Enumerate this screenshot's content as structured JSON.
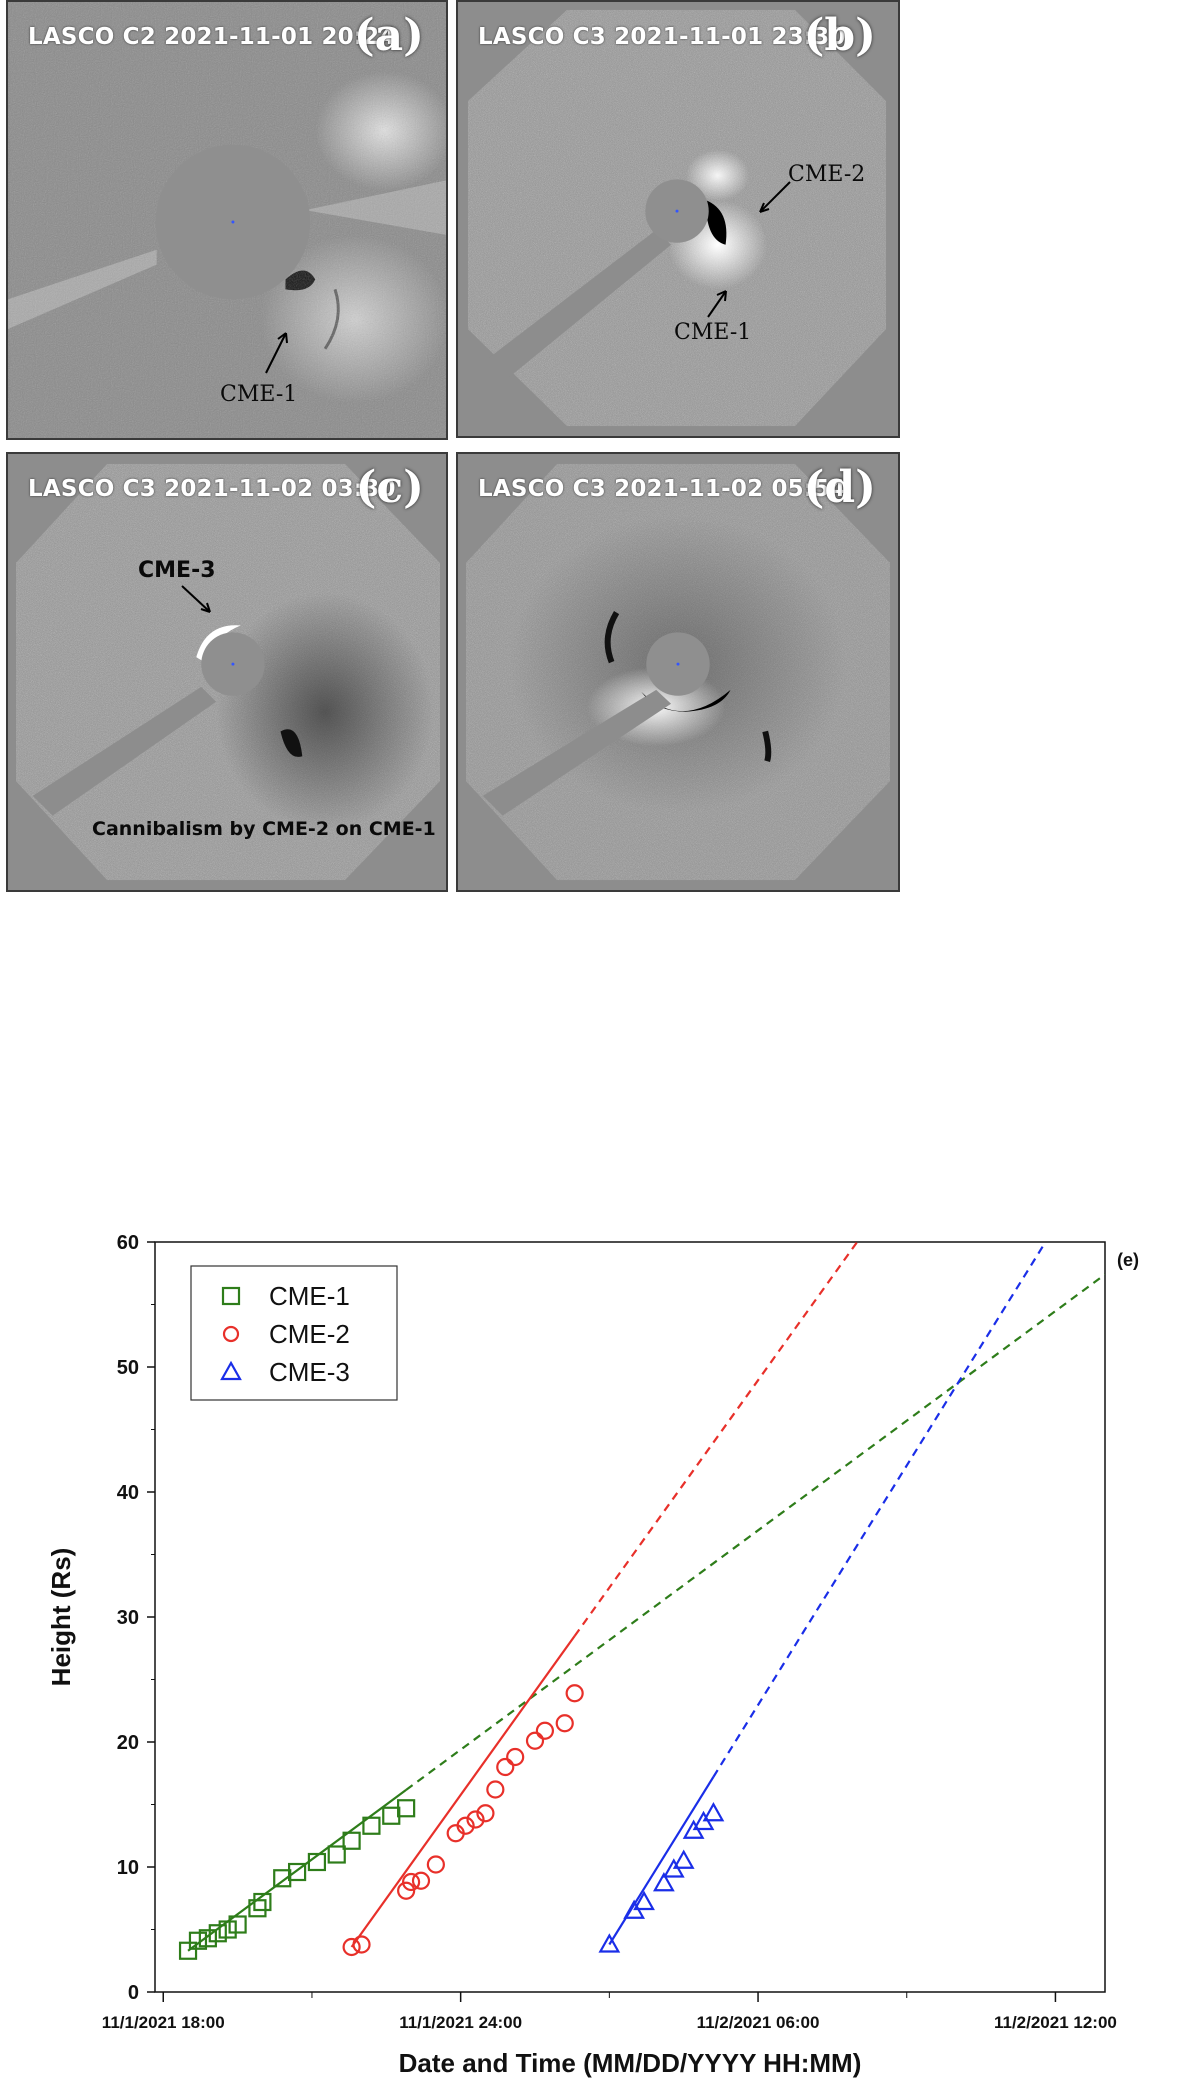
{
  "panels": [
    {
      "id": "a",
      "title": "LASCO C2 2021-11-01 20:24",
      "label": "(a)",
      "annotations": [
        "CME-1"
      ]
    },
    {
      "id": "b",
      "title": "LASCO C3 2021-11-01 23:30",
      "label": "(b)",
      "annotations": [
        "CME-2",
        "CME-1"
      ]
    },
    {
      "id": "c",
      "title": "LASCO C3 2021-11-02 03:30",
      "label": "(c)",
      "annotations": [
        "CME-3",
        "Cannibalism by CME-2 on CME-1"
      ]
    },
    {
      "id": "d",
      "title": "LASCO C3 2021-11-02 05:54",
      "label": "(d)",
      "annotations": []
    }
  ],
  "chart_data": {
    "type": "scatter",
    "panel_label": "(e)",
    "xlabel": "Date and Time (MM/DD/YYYY HH:MM)",
    "ylabel": "Height (Rs)",
    "xlim": [
      "11/1/2021 17:50",
      "11/2/2021 13:00"
    ],
    "ylim": [
      0,
      60
    ],
    "x_tick_labels": [
      "11/1/2021 18:00",
      "11/1/2021 24:00",
      "11/2/2021 06:00",
      "11/2/2021 12:00"
    ],
    "y_ticks": [
      0,
      10,
      20,
      30,
      40,
      50,
      60
    ],
    "grid": false,
    "legend_position": "top-left",
    "series": [
      {
        "name": "CME-1",
        "marker": "square",
        "color": "#2e7d1a",
        "x": [
          "11/1/2021 18:30",
          "11/1/2021 18:42",
          "11/1/2021 18:54",
          "11/1/2021 19:06",
          "11/1/2021 19:18",
          "11/1/2021 19:30",
          "11/1/2021 19:54",
          "11/1/2021 20:00",
          "11/1/2021 20:24",
          "11/1/2021 20:42",
          "11/1/2021 21:06",
          "11/1/2021 21:30",
          "11/1/2021 21:48",
          "11/1/2021 22:12",
          "11/1/2021 22:36",
          "11/1/2021 22:54"
        ],
        "y": [
          3.3,
          4.1,
          4.3,
          4.7,
          5.0,
          5.4,
          6.7,
          7.2,
          9.1,
          9.6,
          10.4,
          11.0,
          12.1,
          13.3,
          14.1,
          14.7
        ],
        "fit": {
          "style": "dashed",
          "x": [
            "11/1/2021 18:30",
            "11/2/2021 13:00"
          ],
          "y": [
            3.3,
            57.4
          ]
        }
      },
      {
        "name": "CME-2",
        "marker": "circle",
        "color": "#e8302a",
        "x": [
          "11/1/2021 21:48",
          "11/1/2021 22:00",
          "11/1/2021 22:54",
          "11/1/2021 23:00",
          "11/1/2021 23:12",
          "11/1/2021 23:30",
          "11/1/2021 23:54",
          "11/2/2021 00:06",
          "11/2/2021 00:18",
          "11/2/2021 00:30",
          "11/2/2021 00:42",
          "11/2/2021 00:54",
          "11/2/2021 01:06",
          "11/2/2021 01:30",
          "11/2/2021 01:42",
          "11/2/2021 02:06",
          "11/2/2021 02:18"
        ],
        "y": [
          3.6,
          3.8,
          8.1,
          8.8,
          8.9,
          10.2,
          12.7,
          13.3,
          13.8,
          14.3,
          16.2,
          18.0,
          18.8,
          20.1,
          20.9,
          21.5,
          23.9
        ],
        "fit": {
          "style": "dashed",
          "x": [
            "11/1/2021 21:48",
            "11/2/2021 08:00"
          ],
          "y": [
            3.6,
            60
          ]
        }
      },
      {
        "name": "CME-3",
        "marker": "triangle",
        "color": "#1a2ee8",
        "x": [
          "11/2/2021 03:00",
          "11/2/2021 03:30",
          "11/2/2021 03:42",
          "11/2/2021 04:06",
          "11/2/2021 04:18",
          "11/2/2021 04:30",
          "11/2/2021 04:42",
          "11/2/2021 04:54",
          "11/2/2021 05:06"
        ],
        "y": [
          3.8,
          6.5,
          7.2,
          8.7,
          9.8,
          10.5,
          12.9,
          13.6,
          14.3
        ],
        "fit": {
          "style": "dashed",
          "x": [
            "11/2/2021 03:00",
            "11/2/2021 11:48"
          ],
          "y": [
            3.8,
            60
          ]
        }
      }
    ]
  }
}
